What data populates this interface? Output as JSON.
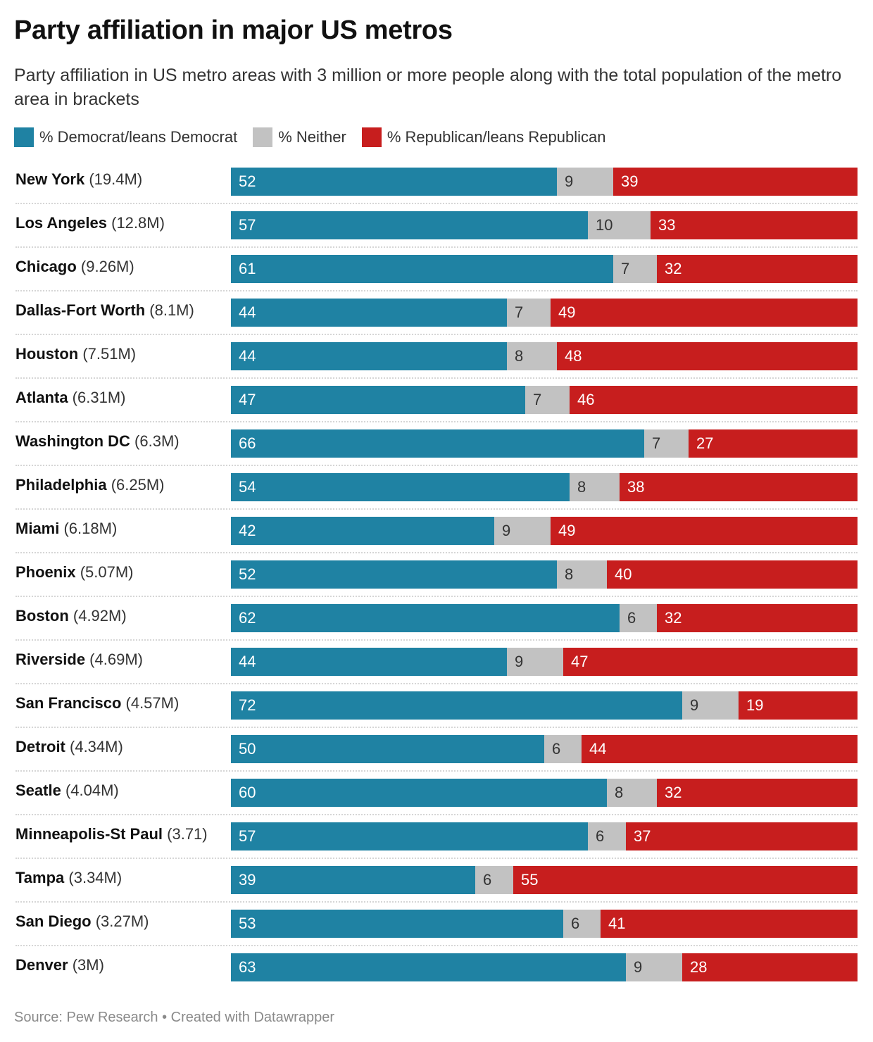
{
  "colors": {
    "democrat": "#1f82a3",
    "neither": "#c2c2c2",
    "republican": "#c71e1e"
  },
  "chart_data": {
    "type": "bar",
    "orientation": "horizontal",
    "stacked": true,
    "stack_mode": "percent",
    "title": "Party affiliation in major US metros",
    "subtitle": "Party affiliation in US metro areas with 3 million or more people along with the total population of the metro area in brackets",
    "legend": [
      "% Democrat/leans Democrat",
      "% Neither",
      "% Republican/leans Republican"
    ],
    "legend_position": "top-left",
    "xlim": [
      0,
      100
    ],
    "categories": [
      {
        "name": "New York",
        "population": "(19.4M)"
      },
      {
        "name": "Los Angeles",
        "population": "(12.8M)"
      },
      {
        "name": "Chicago",
        "population": "(9.26M)"
      },
      {
        "name": "Dallas-Fort Worth",
        "population": "(8.1M)"
      },
      {
        "name": "Houston",
        "population": "(7.51M)"
      },
      {
        "name": "Atlanta",
        "population": "(6.31M)"
      },
      {
        "name": "Washington DC",
        "population": "(6.3M)"
      },
      {
        "name": "Philadelphia",
        "population": "(6.25M)"
      },
      {
        "name": "Miami",
        "population": "(6.18M)"
      },
      {
        "name": "Phoenix",
        "population": "(5.07M)"
      },
      {
        "name": "Boston",
        "population": "(4.92M)"
      },
      {
        "name": "Riverside",
        "population": "(4.69M)"
      },
      {
        "name": "San Francisco",
        "population": "(4.57M)"
      },
      {
        "name": "Detroit",
        "population": "(4.34M)"
      },
      {
        "name": "Seatle",
        "population": "(4.04M)"
      },
      {
        "name": "Minneapolis-St Paul",
        "population": "(3.71)"
      },
      {
        "name": "Tampa",
        "population": "(3.34M)"
      },
      {
        "name": "San Diego",
        "population": "(3.27M)"
      },
      {
        "name": "Denver",
        "population": "(3M)"
      }
    ],
    "series": [
      {
        "name": "% Democrat/leans Democrat",
        "key": "democrat",
        "values": [
          52,
          57,
          61,
          44,
          44,
          47,
          66,
          54,
          42,
          52,
          62,
          44,
          72,
          50,
          60,
          57,
          39,
          53,
          63
        ]
      },
      {
        "name": "% Neither",
        "key": "neither",
        "values": [
          9,
          10,
          7,
          7,
          8,
          7,
          7,
          8,
          9,
          8,
          6,
          9,
          9,
          6,
          8,
          6,
          6,
          6,
          9
        ]
      },
      {
        "name": "% Republican/leans Republican",
        "key": "republican",
        "values": [
          39,
          33,
          32,
          49,
          48,
          46,
          27,
          38,
          49,
          40,
          32,
          47,
          19,
          44,
          32,
          37,
          55,
          41,
          28
        ]
      }
    ]
  },
  "footer": {
    "text": "Source: Pew Research • Created with Datawrapper"
  }
}
